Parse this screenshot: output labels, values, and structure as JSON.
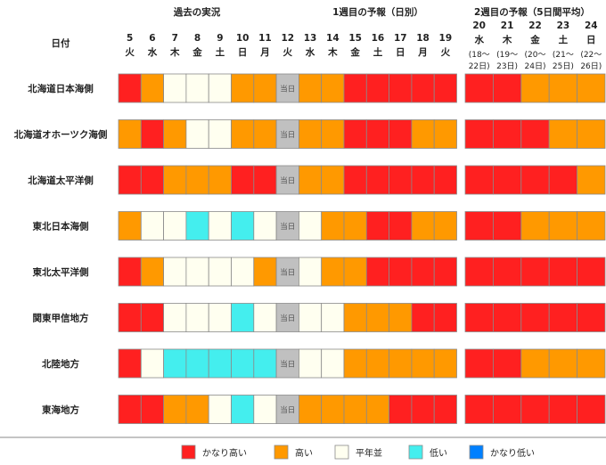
{
  "header": {
    "row_label": "日付",
    "groups": [
      "過去の実況",
      "1週目の予報（日別）",
      "2週目の予報（5日間平均）"
    ]
  },
  "today_label": "当日",
  "colors": {
    "red": "#ff2020",
    "orange": "#ff9900",
    "normal": "#fffff0",
    "cyan": "#44eeee",
    "blue": "#0080ff",
    "today": "#c0c0c0"
  },
  "legend": [
    {
      "key": "red",
      "label": "かなり高い"
    },
    {
      "key": "orange",
      "label": "高い"
    },
    {
      "key": "normal",
      "label": "平年並"
    },
    {
      "key": "cyan",
      "label": "低い"
    },
    {
      "key": "blue",
      "label": "かなり低い"
    }
  ],
  "chart_data": {
    "type": "heatmap",
    "days": [
      {
        "day": "5",
        "dow": "火"
      },
      {
        "day": "6",
        "dow": "水"
      },
      {
        "day": "7",
        "dow": "木"
      },
      {
        "day": "8",
        "dow": "金"
      },
      {
        "day": "9",
        "dow": "土"
      },
      {
        "day": "10",
        "dow": "日"
      },
      {
        "day": "11",
        "dow": "月"
      },
      {
        "day": "12",
        "dow": "火"
      },
      {
        "day": "13",
        "dow": "水"
      },
      {
        "day": "14",
        "dow": "木"
      },
      {
        "day": "15",
        "dow": "金"
      },
      {
        "day": "16",
        "dow": "土"
      },
      {
        "day": "17",
        "dow": "日"
      },
      {
        "day": "18",
        "dow": "月"
      },
      {
        "day": "19",
        "dow": "火"
      }
    ],
    "week2": [
      {
        "day": "20",
        "dow": "水",
        "range": [
          "(18～",
          "22日)"
        ]
      },
      {
        "day": "21",
        "dow": "木",
        "range": [
          "(19～",
          "23日)"
        ]
      },
      {
        "day": "22",
        "dow": "金",
        "range": [
          "(20～",
          "24日)"
        ]
      },
      {
        "day": "23",
        "dow": "土",
        "range": [
          "(21～",
          "25日)"
        ]
      },
      {
        "day": "24",
        "dow": "日",
        "range": [
          "(22～",
          "26日)"
        ]
      }
    ],
    "regions": [
      {
        "name": "北海道日本海側",
        "daily": [
          "red",
          "orange",
          "normal",
          "normal",
          "normal",
          "orange",
          "orange",
          "today",
          "orange",
          "orange",
          "red",
          "red",
          "red",
          "red",
          "red"
        ],
        "week2": [
          "red",
          "red",
          "orange",
          "orange",
          "orange"
        ]
      },
      {
        "name": "北海道オホーツク海側",
        "daily": [
          "orange",
          "red",
          "orange",
          "normal",
          "normal",
          "orange",
          "orange",
          "today",
          "orange",
          "orange",
          "red",
          "red",
          "red",
          "orange",
          "orange"
        ],
        "week2": [
          "red",
          "red",
          "red",
          "orange",
          "orange"
        ]
      },
      {
        "name": "北海道太平洋側",
        "daily": [
          "red",
          "red",
          "orange",
          "orange",
          "orange",
          "red",
          "red",
          "today",
          "orange",
          "orange",
          "red",
          "red",
          "red",
          "red",
          "red"
        ],
        "week2": [
          "red",
          "red",
          "red",
          "red",
          "orange"
        ]
      },
      {
        "name": "東北日本海側",
        "daily": [
          "orange",
          "normal",
          "normal",
          "cyan",
          "normal",
          "cyan",
          "normal",
          "today",
          "normal",
          "orange",
          "orange",
          "red",
          "red",
          "orange",
          "orange"
        ],
        "week2": [
          "red",
          "red",
          "orange",
          "orange",
          "orange"
        ]
      },
      {
        "name": "東北太平洋側",
        "daily": [
          "red",
          "orange",
          "normal",
          "normal",
          "normal",
          "normal",
          "orange",
          "today",
          "normal",
          "orange",
          "orange",
          "red",
          "red",
          "red",
          "red"
        ],
        "week2": [
          "red",
          "red",
          "red",
          "red",
          "red"
        ]
      },
      {
        "name": "関東甲信地方",
        "daily": [
          "red",
          "red",
          "normal",
          "normal",
          "normal",
          "cyan",
          "normal",
          "today",
          "normal",
          "normal",
          "orange",
          "orange",
          "orange",
          "red",
          "red"
        ],
        "week2": [
          "red",
          "red",
          "red",
          "red",
          "red"
        ]
      },
      {
        "name": "北陸地方",
        "daily": [
          "red",
          "normal",
          "cyan",
          "cyan",
          "cyan",
          "cyan",
          "cyan",
          "today",
          "normal",
          "normal",
          "orange",
          "orange",
          "orange",
          "orange",
          "orange"
        ],
        "week2": [
          "red",
          "red",
          "orange",
          "orange",
          "orange"
        ]
      },
      {
        "name": "東海地方",
        "daily": [
          "red",
          "red",
          "orange",
          "orange",
          "normal",
          "cyan",
          "normal",
          "today",
          "orange",
          "orange",
          "orange",
          "orange",
          "red",
          "red",
          "red"
        ],
        "week2": [
          "red",
          "red",
          "red",
          "red",
          "red"
        ]
      }
    ]
  }
}
